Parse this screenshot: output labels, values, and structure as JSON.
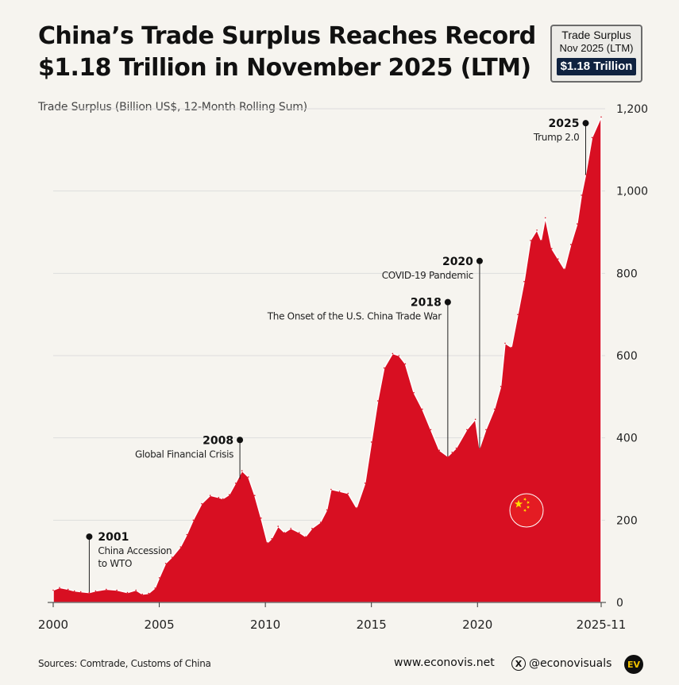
{
  "header": {
    "title_line1": "China’s Trade Surplus Reaches Record",
    "title_line2": "$1.18 Trillion in November 2025 (LTM)"
  },
  "badge": {
    "line1": "Trade Surplus",
    "line2": "Nov 2025 (LTM)",
    "value": "$1.18 Trillion"
  },
  "footer": {
    "sources": "Sources: Comtrade, Customs of China",
    "website": "www.econovis.net",
    "social": "@econovisuals",
    "logo": "EV"
  },
  "colors": {
    "area": "#d80f22",
    "background": "#f6f4ef",
    "grid": "#dddddd",
    "badge_value_bg": "#0f2240"
  },
  "icons": [
    "x-twitter-icon",
    "china-flag-icon",
    "econovis-logo-icon"
  ],
  "chart_data": {
    "type": "area",
    "title": "China’s Trade Surplus Reaches Record $1.18 Trillion in November 2025 (LTM)",
    "ylabel": "Trade Surplus (Billion US$, 12-Month Rolling Sum)",
    "xlabel": "",
    "ylim": [
      0,
      1200
    ],
    "y_axis_position": "right",
    "grid": true,
    "y_ticks": [
      {
        "value": 0,
        "label": "0"
      },
      {
        "value": 200,
        "label": "200"
      },
      {
        "value": 400,
        "label": "400"
      },
      {
        "value": 600,
        "label": "600"
      },
      {
        "value": 800,
        "label": "800"
      },
      {
        "value": 1000,
        "label": "1,000"
      },
      {
        "value": 1200,
        "label": "1,200"
      }
    ],
    "x_ticks": [
      {
        "value": 2000,
        "label": "2000"
      },
      {
        "value": 2005,
        "label": "2005"
      },
      {
        "value": 2010,
        "label": "2010"
      },
      {
        "value": 2015,
        "label": "2015"
      },
      {
        "value": 2020,
        "label": "2020"
      },
      {
        "value": 2025.83,
        "label": "2025-11"
      }
    ],
    "series": [
      {
        "points": [
          [
            2000.0,
            30
          ],
          [
            2000.3,
            36
          ],
          [
            2000.7,
            32
          ],
          [
            2001.0,
            28
          ],
          [
            2001.3,
            26
          ],
          [
            2001.7,
            24
          ],
          [
            2002.0,
            28
          ],
          [
            2002.5,
            32
          ],
          [
            2003.0,
            30
          ],
          [
            2003.5,
            24
          ],
          [
            2003.9,
            30
          ],
          [
            2004.2,
            20
          ],
          [
            2004.5,
            22
          ],
          [
            2004.8,
            35
          ],
          [
            2005.0,
            60
          ],
          [
            2005.3,
            95
          ],
          [
            2005.6,
            110
          ],
          [
            2006.0,
            135
          ],
          [
            2006.3,
            165
          ],
          [
            2006.6,
            200
          ],
          [
            2007.0,
            240
          ],
          [
            2007.4,
            260
          ],
          [
            2007.8,
            255
          ],
          [
            2008.0,
            252
          ],
          [
            2008.3,
            262
          ],
          [
            2008.6,
            290
          ],
          [
            2008.9,
            320
          ],
          [
            2009.2,
            305
          ],
          [
            2009.5,
            260
          ],
          [
            2009.8,
            205
          ],
          [
            2010.1,
            145
          ],
          [
            2010.3,
            155
          ],
          [
            2010.6,
            185
          ],
          [
            2010.9,
            170
          ],
          [
            2011.2,
            180
          ],
          [
            2011.6,
            170
          ],
          [
            2011.9,
            160
          ],
          [
            2012.2,
            180
          ],
          [
            2012.6,
            195
          ],
          [
            2012.9,
            225
          ],
          [
            2013.1,
            275
          ],
          [
            2013.5,
            270
          ],
          [
            2013.9,
            265
          ],
          [
            2014.3,
            230
          ],
          [
            2014.7,
            290
          ],
          [
            2015.0,
            390
          ],
          [
            2015.3,
            490
          ],
          [
            2015.6,
            570
          ],
          [
            2016.0,
            605
          ],
          [
            2016.3,
            600
          ],
          [
            2016.6,
            580
          ],
          [
            2017.0,
            510
          ],
          [
            2017.4,
            470
          ],
          [
            2017.8,
            420
          ],
          [
            2018.2,
            370
          ],
          [
            2018.6,
            355
          ],
          [
            2018.8,
            365
          ],
          [
            2019.0,
            375
          ],
          [
            2019.5,
            420
          ],
          [
            2019.9,
            445
          ],
          [
            2020.1,
            375
          ],
          [
            2020.4,
            420
          ],
          [
            2020.8,
            470
          ],
          [
            2021.1,
            525
          ],
          [
            2021.3,
            630
          ],
          [
            2021.6,
            620
          ],
          [
            2021.9,
            700
          ],
          [
            2022.2,
            780
          ],
          [
            2022.5,
            880
          ],
          [
            2022.8,
            905
          ],
          [
            2023.0,
            880
          ],
          [
            2023.2,
            935
          ],
          [
            2023.5,
            860
          ],
          [
            2023.8,
            835
          ],
          [
            2024.1,
            810
          ],
          [
            2024.4,
            870
          ],
          [
            2024.7,
            920
          ],
          [
            2024.9,
            990
          ],
          [
            2025.1,
            1040
          ],
          [
            2025.4,
            1130
          ],
          [
            2025.83,
            1180
          ]
        ]
      }
    ],
    "annotations": [
      {
        "year_label": "2001",
        "text_lines": [
          "China Accession",
          "to WTO"
        ],
        "x": 2001.7,
        "y_anchor": 25,
        "y_dot": 160,
        "text_side": "right"
      },
      {
        "year_label": "2008",
        "text_lines": [
          "Global Financial Crisis"
        ],
        "x": 2008.8,
        "y_anchor": 300,
        "y_dot": 395,
        "text_side": "left"
      },
      {
        "year_label": "2018",
        "text_lines": [
          "The Onset of the U.S. China Trade War"
        ],
        "x": 2018.6,
        "y_anchor": 355,
        "y_dot": 730,
        "text_side": "left"
      },
      {
        "year_label": "2020",
        "text_lines": [
          "COVID-19 Pandemic"
        ],
        "x": 2020.1,
        "y_anchor": 375,
        "y_dot": 830,
        "text_side": "left"
      },
      {
        "year_label": "2025",
        "text_lines": [
          "Trump 2.0"
        ],
        "x": 2025.1,
        "y_anchor": 1040,
        "y_dot": 1165,
        "text_side": "left"
      }
    ]
  }
}
